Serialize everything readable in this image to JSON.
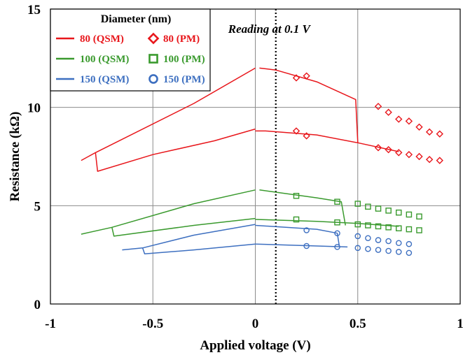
{
  "chart_data": {
    "type": "scatter",
    "title": "",
    "xlabel": "Applied voltage (V)",
    "ylabel": "Resistance (kΩ)",
    "xlim": [
      -1,
      1
    ],
    "ylim": [
      0,
      15
    ],
    "x_ticks": [
      "-1",
      "-0.5",
      "0",
      "0.5",
      "1"
    ],
    "y_ticks": [
      "0",
      "5",
      "10",
      "15"
    ],
    "grid": true,
    "annotation": {
      "text": "Reading at 0.1 V",
      "x": 0.1
    },
    "legend": {
      "title": "Diameter (nm)",
      "placement": "top-left",
      "entries": [
        {
          "label": "80 (QSM)",
          "color": "#e8161b",
          "marker": "line"
        },
        {
          "label": "80 (PM)",
          "color": "#e8161b",
          "marker": "diamond"
        },
        {
          "label": "100 (QSM)",
          "color": "#3a9a2e",
          "marker": "line"
        },
        {
          "label": "100 (PM)",
          "color": "#3a9a2e",
          "marker": "square"
        },
        {
          "label": "150 (QSM)",
          "color": "#3d6fc0",
          "marker": "line"
        },
        {
          "label": "150 (PM)",
          "color": "#3d6fc0",
          "marker": "circle"
        }
      ]
    },
    "series": [
      {
        "name": "80 (QSM)",
        "style": "line",
        "color": "#e8161b",
        "x": [
          -0.85,
          -0.78,
          -0.78,
          -0.5,
          -0.2,
          0.0,
          0.0,
          -0.3,
          -0.6,
          -0.78,
          0.03,
          0.1,
          0.49,
          0.49,
          0.5,
          0.6,
          0.7,
          0.03,
          0.1,
          0.3,
          0.5
        ],
        "y": [
          7.3,
          7.7,
          6.8,
          7.5,
          8.2,
          8.8,
          12.0,
          10.1,
          8.8,
          7.7,
          12.0,
          11.9,
          10.4,
          8.2,
          8.2,
          7.95,
          7.8,
          8.8,
          8.8,
          8.6,
          8.2
        ],
        "segments": [
          [
            [
              -0.85,
              7.3
            ],
            [
              -0.78,
              7.7
            ],
            [
              -0.3,
              10.2
            ],
            [
              0.0,
              12.0
            ]
          ],
          [
            [
              -0.78,
              7.7
            ],
            [
              -0.77,
              6.75
            ],
            [
              -0.5,
              7.6
            ],
            [
              -0.2,
              8.3
            ],
            [
              0.0,
              8.9
            ]
          ],
          [
            [
              0.0,
              8.8
            ],
            [
              0.05,
              8.8
            ],
            [
              0.3,
              8.6
            ],
            [
              0.5,
              8.2
            ],
            [
              0.7,
              7.75
            ]
          ],
          [
            [
              0.02,
              12.0
            ],
            [
              0.1,
              11.9
            ],
            [
              0.3,
              11.3
            ],
            [
              0.49,
              10.4
            ],
            [
              0.5,
              8.2
            ]
          ]
        ]
      },
      {
        "name": "100 (QSM)",
        "style": "line",
        "color": "#3a9a2e",
        "segments": [
          [
            [
              -0.85,
              3.55
            ],
            [
              -0.7,
              3.9
            ],
            [
              -0.3,
              5.1
            ],
            [
              0.0,
              5.8
            ]
          ],
          [
            [
              -0.7,
              3.9
            ],
            [
              -0.69,
              3.45
            ],
            [
              -0.3,
              4.0
            ],
            [
              0.0,
              4.35
            ]
          ],
          [
            [
              0.02,
              5.8
            ],
            [
              0.3,
              5.4
            ],
            [
              0.42,
              5.2
            ],
            [
              0.44,
              4.0
            ]
          ],
          [
            [
              0.0,
              4.3
            ],
            [
              0.3,
              4.2
            ],
            [
              0.5,
              4.1
            ],
            [
              0.7,
              3.95
            ]
          ]
        ]
      },
      {
        "name": "150 (QSM)",
        "style": "line",
        "color": "#3d6fc0",
        "segments": [
          [
            [
              -0.65,
              2.75
            ],
            [
              -0.55,
              2.85
            ],
            [
              -0.3,
              3.5
            ],
            [
              0.0,
              4.05
            ]
          ],
          [
            [
              -0.55,
              2.85
            ],
            [
              -0.54,
              2.55
            ],
            [
              -0.3,
              2.75
            ],
            [
              0.0,
              3.05
            ]
          ],
          [
            [
              0.0,
              4.0
            ],
            [
              0.3,
              3.8
            ],
            [
              0.4,
              3.6
            ],
            [
              0.41,
              2.95
            ]
          ],
          [
            [
              0.0,
              3.05
            ],
            [
              0.3,
              2.95
            ],
            [
              0.45,
              2.9
            ]
          ]
        ]
      },
      {
        "name": "80 (PM)",
        "style": "marker",
        "marker": "diamond",
        "color": "#e8161b",
        "points": [
          [
            0.2,
            11.5
          ],
          [
            0.25,
            11.6
          ],
          [
            0.2,
            8.8
          ],
          [
            0.25,
            8.55
          ],
          [
            0.6,
            10.05
          ],
          [
            0.65,
            9.75
          ],
          [
            0.7,
            9.4
          ],
          [
            0.75,
            9.3
          ],
          [
            0.8,
            9.0
          ],
          [
            0.85,
            8.75
          ],
          [
            0.9,
            8.65
          ],
          [
            0.6,
            7.95
          ],
          [
            0.65,
            7.85
          ],
          [
            0.7,
            7.7
          ],
          [
            0.75,
            7.6
          ],
          [
            0.8,
            7.5
          ],
          [
            0.85,
            7.35
          ],
          [
            0.9,
            7.3
          ]
        ]
      },
      {
        "name": "100 (PM)",
        "style": "marker",
        "marker": "square",
        "color": "#3a9a2e",
        "points": [
          [
            0.2,
            5.5
          ],
          [
            0.4,
            5.2
          ],
          [
            0.2,
            4.3
          ],
          [
            0.4,
            4.15
          ],
          [
            0.5,
            5.1
          ],
          [
            0.55,
            4.95
          ],
          [
            0.6,
            4.85
          ],
          [
            0.65,
            4.75
          ],
          [
            0.7,
            4.65
          ],
          [
            0.75,
            4.55
          ],
          [
            0.8,
            4.45
          ],
          [
            0.5,
            4.05
          ],
          [
            0.55,
            4.0
          ],
          [
            0.6,
            3.95
          ],
          [
            0.65,
            3.9
          ],
          [
            0.7,
            3.85
          ],
          [
            0.75,
            3.8
          ],
          [
            0.8,
            3.75
          ]
        ]
      },
      {
        "name": "150 (PM)",
        "style": "marker",
        "marker": "circle",
        "color": "#3d6fc0",
        "points": [
          [
            0.25,
            3.75
          ],
          [
            0.4,
            3.6
          ],
          [
            0.25,
            2.95
          ],
          [
            0.4,
            2.9
          ],
          [
            0.5,
            3.45
          ],
          [
            0.55,
            3.35
          ],
          [
            0.6,
            3.25
          ],
          [
            0.65,
            3.2
          ],
          [
            0.7,
            3.1
          ],
          [
            0.75,
            3.05
          ],
          [
            0.5,
            2.85
          ],
          [
            0.55,
            2.8
          ],
          [
            0.6,
            2.75
          ],
          [
            0.65,
            2.7
          ],
          [
            0.7,
            2.65
          ],
          [
            0.75,
            2.6
          ]
        ]
      }
    ]
  }
}
